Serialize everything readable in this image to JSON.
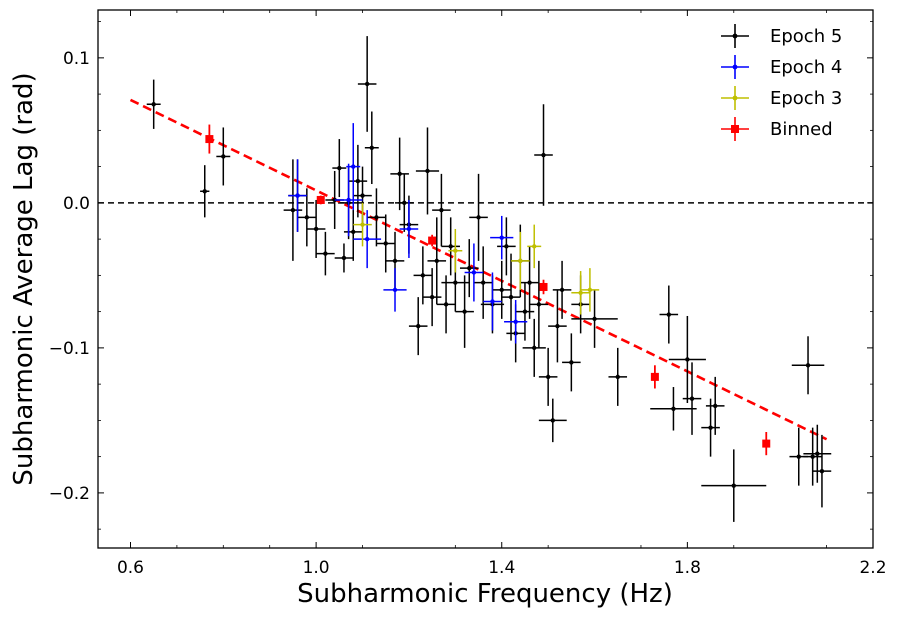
{
  "chart_data": {
    "type": "scatter",
    "title": "",
    "xlabel": "Subharmonic Frequency (Hz)",
    "ylabel": "Subharmonic Average Lag (rad)",
    "xlim": [
      0.53,
      2.2
    ],
    "ylim": [
      -0.238,
      0.133
    ],
    "xticks": [
      0.6,
      1.0,
      1.4,
      1.8,
      2.2
    ],
    "xtick_labels": [
      "0.6",
      "1.0",
      "1.4",
      "1.8",
      "2.2"
    ],
    "yticks": [
      -0.2,
      -0.1,
      0.0,
      0.1
    ],
    "ytick_labels": [
      "−0.2",
      "−0.1",
      "0.0",
      "0.1"
    ],
    "grid": false,
    "legend_position": "top-right",
    "reference_line": {
      "y": 0.0,
      "style": "dashed",
      "color": "#000000"
    },
    "fit_line": {
      "x": [
        0.6,
        2.1
      ],
      "y": [
        0.071,
        -0.163
      ],
      "color": "#ff0000",
      "style": "dashed"
    },
    "series": [
      {
        "name": "Epoch 5",
        "color": "#000000",
        "marker": "dot",
        "points": [
          {
            "x": 0.65,
            "y": 0.068,
            "xerr": 0.015,
            "yerr": 0.017
          },
          {
            "x": 0.76,
            "y": 0.008,
            "xerr": 0.01,
            "yerr": 0.018
          },
          {
            "x": 0.8,
            "y": 0.032,
            "xerr": 0.015,
            "yerr": 0.02
          },
          {
            "x": 0.95,
            "y": -0.005,
            "xerr": 0.02,
            "yerr": 0.035
          },
          {
            "x": 0.96,
            "y": 0.005,
            "xerr": 0.02,
            "yerr": 0.025
          },
          {
            "x": 0.98,
            "y": -0.01,
            "xerr": 0.02,
            "yerr": 0.02
          },
          {
            "x": 1.0,
            "y": -0.018,
            "xerr": 0.02,
            "yerr": 0.02
          },
          {
            "x": 1.02,
            "y": -0.035,
            "xerr": 0.02,
            "yerr": 0.015
          },
          {
            "x": 1.04,
            "y": 0.002,
            "xerr": 0.02,
            "yerr": 0.02
          },
          {
            "x": 1.05,
            "y": 0.024,
            "xerr": 0.015,
            "yerr": 0.02
          },
          {
            "x": 1.06,
            "y": -0.038,
            "xerr": 0.02,
            "yerr": 0.01
          },
          {
            "x": 1.07,
            "y": 0.0,
            "xerr": 0.02,
            "yerr": 0.025
          },
          {
            "x": 1.08,
            "y": -0.02,
            "xerr": 0.02,
            "yerr": 0.02
          },
          {
            "x": 1.09,
            "y": 0.015,
            "xerr": 0.02,
            "yerr": 0.025
          },
          {
            "x": 1.1,
            "y": 0.005,
            "xerr": 0.02,
            "yerr": 0.02
          },
          {
            "x": 1.11,
            "y": 0.082,
            "xerr": 0.02,
            "yerr": 0.033
          },
          {
            "x": 1.12,
            "y": 0.038,
            "xerr": 0.015,
            "yerr": 0.025
          },
          {
            "x": 1.13,
            "y": -0.01,
            "xerr": 0.02,
            "yerr": 0.02
          },
          {
            "x": 1.15,
            "y": -0.028,
            "xerr": 0.02,
            "yerr": 0.02
          },
          {
            "x": 1.17,
            "y": -0.04,
            "xerr": 0.02,
            "yerr": 0.02
          },
          {
            "x": 1.18,
            "y": 0.02,
            "xerr": 0.02,
            "yerr": 0.025
          },
          {
            "x": 1.19,
            "y": 0.0,
            "xerr": 0.02,
            "yerr": 0.02
          },
          {
            "x": 1.2,
            "y": -0.015,
            "xerr": 0.02,
            "yerr": 0.02
          },
          {
            "x": 1.22,
            "y": -0.085,
            "xerr": 0.02,
            "yerr": 0.02
          },
          {
            "x": 1.23,
            "y": -0.05,
            "xerr": 0.02,
            "yerr": 0.02
          },
          {
            "x": 1.24,
            "y": 0.022,
            "xerr": 0.025,
            "yerr": 0.03
          },
          {
            "x": 1.25,
            "y": -0.065,
            "xerr": 0.02,
            "yerr": 0.02
          },
          {
            "x": 1.26,
            "y": -0.04,
            "xerr": 0.02,
            "yerr": 0.03
          },
          {
            "x": 1.27,
            "y": -0.005,
            "xerr": 0.02,
            "yerr": 0.025
          },
          {
            "x": 1.28,
            "y": -0.07,
            "xerr": 0.02,
            "yerr": 0.02
          },
          {
            "x": 1.29,
            "y": -0.03,
            "xerr": 0.02,
            "yerr": 0.02
          },
          {
            "x": 1.3,
            "y": -0.055,
            "xerr": 0.03,
            "yerr": 0.02
          },
          {
            "x": 1.32,
            "y": -0.075,
            "xerr": 0.02,
            "yerr": 0.025
          },
          {
            "x": 1.33,
            "y": -0.045,
            "xerr": 0.02,
            "yerr": 0.02
          },
          {
            "x": 1.35,
            "y": -0.01,
            "xerr": 0.02,
            "yerr": 0.03
          },
          {
            "x": 1.36,
            "y": -0.055,
            "xerr": 0.02,
            "yerr": 0.025
          },
          {
            "x": 1.38,
            "y": -0.07,
            "xerr": 0.025,
            "yerr": 0.02
          },
          {
            "x": 1.4,
            "y": -0.06,
            "xerr": 0.02,
            "yerr": 0.02
          },
          {
            "x": 1.41,
            "y": -0.03,
            "xerr": 0.02,
            "yerr": 0.02
          },
          {
            "x": 1.42,
            "y": -0.065,
            "xerr": 0.02,
            "yerr": 0.03
          },
          {
            "x": 1.43,
            "y": -0.09,
            "xerr": 0.02,
            "yerr": 0.02
          },
          {
            "x": 1.44,
            "y": -0.04,
            "xerr": 0.02,
            "yerr": 0.025
          },
          {
            "x": 1.45,
            "y": -0.075,
            "xerr": 0.02,
            "yerr": 0.02
          },
          {
            "x": 1.46,
            "y": -0.055,
            "xerr": 0.02,
            "yerr": 0.025
          },
          {
            "x": 1.47,
            "y": -0.1,
            "xerr": 0.025,
            "yerr": 0.02
          },
          {
            "x": 1.48,
            "y": -0.07,
            "xerr": 0.02,
            "yerr": 0.03
          },
          {
            "x": 1.49,
            "y": 0.033,
            "xerr": 0.02,
            "yerr": 0.035
          },
          {
            "x": 1.5,
            "y": -0.12,
            "xerr": 0.02,
            "yerr": 0.02
          },
          {
            "x": 1.51,
            "y": -0.15,
            "xerr": 0.03,
            "yerr": 0.015
          },
          {
            "x": 1.52,
            "y": -0.085,
            "xerr": 0.02,
            "yerr": 0.025
          },
          {
            "x": 1.53,
            "y": -0.06,
            "xerr": 0.02,
            "yerr": 0.02
          },
          {
            "x": 1.55,
            "y": -0.11,
            "xerr": 0.02,
            "yerr": 0.02
          },
          {
            "x": 1.57,
            "y": -0.07,
            "xerr": 0.02,
            "yerr": 0.02
          },
          {
            "x": 1.6,
            "y": -0.08,
            "xerr": 0.05,
            "yerr": 0.02
          },
          {
            "x": 1.65,
            "y": -0.12,
            "xerr": 0.02,
            "yerr": 0.02
          },
          {
            "x": 1.76,
            "y": -0.077,
            "xerr": 0.02,
            "yerr": 0.02
          },
          {
            "x": 1.77,
            "y": -0.142,
            "xerr": 0.05,
            "yerr": 0.015
          },
          {
            "x": 1.8,
            "y": -0.108,
            "xerr": 0.04,
            "yerr": 0.03
          },
          {
            "x": 1.81,
            "y": -0.135,
            "xerr": 0.02,
            "yerr": 0.025
          },
          {
            "x": 1.85,
            "y": -0.155,
            "xerr": 0.02,
            "yerr": 0.02
          },
          {
            "x": 1.86,
            "y": -0.14,
            "xerr": 0.02,
            "yerr": 0.02
          },
          {
            "x": 1.9,
            "y": -0.195,
            "xerr": 0.07,
            "yerr": 0.025
          },
          {
            "x": 2.04,
            "y": -0.175,
            "xerr": 0.02,
            "yerr": 0.02
          },
          {
            "x": 2.06,
            "y": -0.112,
            "xerr": 0.035,
            "yerr": 0.02
          },
          {
            "x": 2.07,
            "y": -0.175,
            "xerr": 0.02,
            "yerr": 0.02
          },
          {
            "x": 2.08,
            "y": -0.173,
            "xerr": 0.03,
            "yerr": 0.02
          },
          {
            "x": 2.09,
            "y": -0.185,
            "xerr": 0.02,
            "yerr": 0.025
          }
        ]
      },
      {
        "name": "Epoch 4",
        "color": "#0000ff",
        "marker": "dot",
        "points": [
          {
            "x": 0.96,
            "y": 0.005,
            "xerr": 0.02,
            "yerr": 0.025
          },
          {
            "x": 1.07,
            "y": 0.002,
            "xerr": 0.03,
            "yerr": 0.025
          },
          {
            "x": 1.08,
            "y": 0.025,
            "xerr": 0.015,
            "yerr": 0.03
          },
          {
            "x": 1.11,
            "y": -0.025,
            "xerr": 0.03,
            "yerr": 0.02
          },
          {
            "x": 1.17,
            "y": -0.06,
            "xerr": 0.025,
            "yerr": 0.015
          },
          {
            "x": 1.2,
            "y": -0.018,
            "xerr": 0.02,
            "yerr": 0.02
          },
          {
            "x": 1.34,
            "y": -0.048,
            "xerr": 0.02,
            "yerr": 0.02
          },
          {
            "x": 1.38,
            "y": -0.068,
            "xerr": 0.02,
            "yerr": 0.02
          },
          {
            "x": 1.4,
            "y": -0.024,
            "xerr": 0.025,
            "yerr": 0.015
          },
          {
            "x": 1.43,
            "y": -0.082,
            "xerr": 0.025,
            "yerr": 0.015
          }
        ]
      },
      {
        "name": "Epoch 3",
        "color": "#bfbf00",
        "marker": "dot",
        "points": [
          {
            "x": 1.1,
            "y": -0.015,
            "xerr": 0.02,
            "yerr": 0.015
          },
          {
            "x": 1.3,
            "y": -0.033,
            "xerr": 0.015,
            "yerr": 0.015
          },
          {
            "x": 1.44,
            "y": -0.04,
            "xerr": 0.02,
            "yerr": 0.02
          },
          {
            "x": 1.47,
            "y": -0.03,
            "xerr": 0.015,
            "yerr": 0.015
          },
          {
            "x": 1.57,
            "y": -0.062,
            "xerr": 0.02,
            "yerr": 0.015
          },
          {
            "x": 1.59,
            "y": -0.06,
            "xerr": 0.02,
            "yerr": 0.015
          }
        ]
      },
      {
        "name": "Binned",
        "color": "#ff0000",
        "marker": "square",
        "points": [
          {
            "x": 0.77,
            "y": 0.044,
            "xerr": 0,
            "yerr": 0.01
          },
          {
            "x": 1.01,
            "y": 0.002,
            "xerr": 0,
            "yerr": 0.003
          },
          {
            "x": 1.25,
            "y": -0.026,
            "xerr": 0,
            "yerr": 0.004
          },
          {
            "x": 1.49,
            "y": -0.058,
            "xerr": 0,
            "yerr": 0.005
          },
          {
            "x": 1.73,
            "y": -0.12,
            "xerr": 0,
            "yerr": 0.008
          },
          {
            "x": 1.97,
            "y": -0.166,
            "xerr": 0,
            "yerr": 0.008
          }
        ]
      }
    ]
  }
}
